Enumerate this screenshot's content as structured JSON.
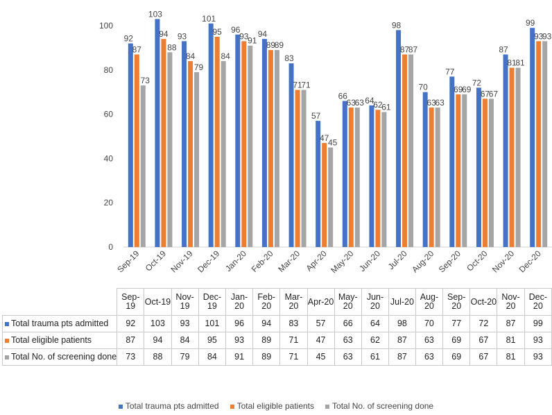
{
  "chart_data": {
    "type": "bar",
    "categories": [
      "Sep-19",
      "Oct-19",
      "Nov-19",
      "Dec-19",
      "Jan-20",
      "Feb-20",
      "Mar-20",
      "Apr-20",
      "May-20",
      "Jun-20",
      "Jul-20",
      "Aug-20",
      "Sep-20",
      "Oct-20",
      "Nov-20",
      "Dec-20"
    ],
    "table_headers": [
      "Sep-\n19",
      "Oct-19",
      "Nov-\n19",
      "Dec-\n19",
      "Jan-20",
      "Feb-\n20",
      "Mar-\n20",
      "Apr-20",
      "May-\n20",
      "Jun-20",
      "Jul-20",
      "Aug-\n20",
      "Sep-\n20",
      "Oct-20",
      "Nov-\n20",
      "Dec-\n20"
    ],
    "series": [
      {
        "name": "Total trauma pts admitted",
        "color": "#4472C4",
        "values": [
          92,
          103,
          93,
          101,
          96,
          94,
          83,
          57,
          66,
          64,
          98,
          70,
          77,
          72,
          87,
          99
        ]
      },
      {
        "name": "Total eligible patients",
        "color": "#ED7D31",
        "values": [
          87,
          94,
          84,
          95,
          93,
          89,
          71,
          47,
          63,
          62,
          87,
          63,
          69,
          67,
          81,
          93
        ]
      },
      {
        "name": "Total No. of screening done",
        "color": "#A5A5A5",
        "values": [
          73,
          88,
          79,
          84,
          91,
          89,
          71,
          45,
          63,
          61,
          87,
          63,
          69,
          67,
          81,
          93
        ]
      }
    ],
    "yticks": [
      0,
      20,
      40,
      60,
      80,
      100
    ],
    "ylim": [
      0,
      100
    ],
    "title": "",
    "xlabel": "",
    "ylabel": "",
    "legend_position": "bottom"
  }
}
